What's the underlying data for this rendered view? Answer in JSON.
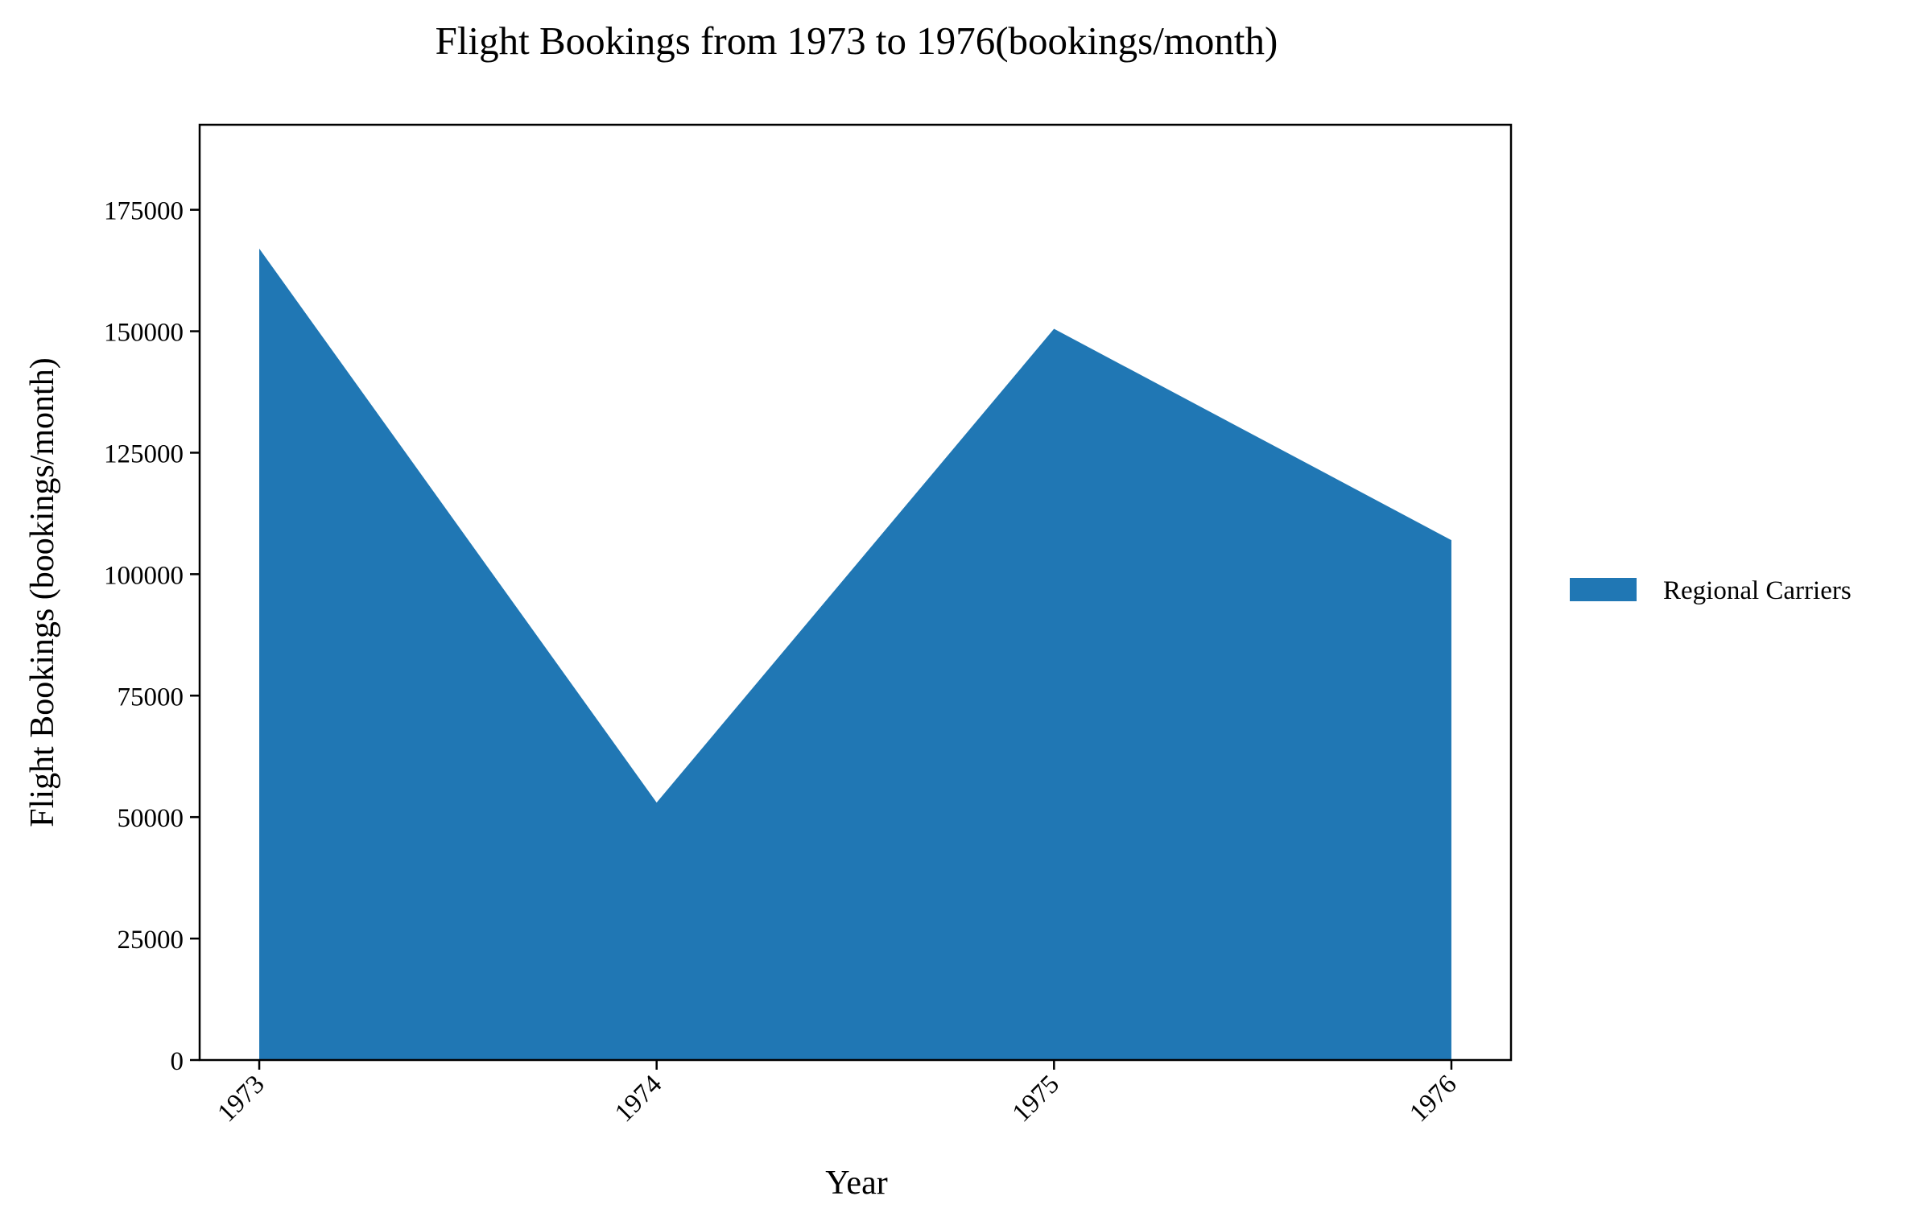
{
  "chart_data": {
    "type": "area",
    "title": "Flight Bookings from 1973 to 1976(bookings/month)",
    "xlabel": "Year",
    "ylabel": "Flight Bookings (bookings/month)",
    "categories": [
      "1973",
      "1974",
      "1975",
      "1976"
    ],
    "series": [
      {
        "name": "Regional Carriers",
        "values": [
          167000,
          53000,
          150500,
          107000
        ],
        "color": "#2077b4"
      }
    ],
    "ylim": [
      0,
      192500
    ],
    "yticks": [
      0,
      25000,
      50000,
      75000,
      100000,
      125000,
      150000,
      175000
    ],
    "xlim": [
      -0.15,
      3.15
    ],
    "grid": false,
    "legend": "right, outside plot area",
    "x_tick_rotation": "45 degrees"
  }
}
